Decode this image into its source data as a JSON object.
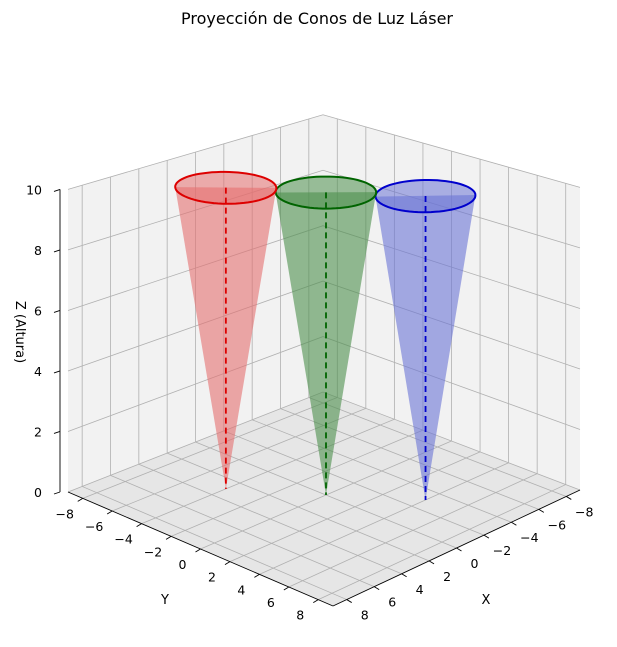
{
  "chart_data": {
    "type": "3d-cone",
    "title": "Proyección de Conos de Luz Láser",
    "xlabel": "X",
    "ylabel": "Y",
    "zlabel": "Z (Altura)",
    "xlim": [
      -9,
      9
    ],
    "ylim": [
      -9,
      9
    ],
    "zlim": [
      0,
      10
    ],
    "xticks": [
      -8,
      -6,
      -4,
      -2,
      0,
      2,
      4,
      6,
      8
    ],
    "yticks": [
      -8,
      -6,
      -4,
      -2,
      0,
      2,
      4,
      6,
      8
    ],
    "zticks": [
      0,
      2,
      4,
      6,
      8,
      10
    ],
    "grid": true,
    "series": [
      {
        "color": "#0000cc",
        "fill": "#6b74d6",
        "apex": [
          -3,
          4,
          0
        ],
        "top_center": [
          -3,
          4,
          10
        ],
        "radius": 2.5,
        "dashed_axis": true
      },
      {
        "color": "#006400",
        "fill": "#4d8f4d",
        "apex": [
          0,
          0,
          0
        ],
        "top_center": [
          0,
          0,
          10
        ],
        "radius": 2.5,
        "dashed_axis": true
      },
      {
        "color": "#dd0000",
        "fill": "#e57070",
        "apex": [
          3,
          -4,
          0
        ],
        "top_center": [
          3,
          -4,
          10
        ],
        "radius": 2.5,
        "dashed_axis": true
      }
    ]
  }
}
